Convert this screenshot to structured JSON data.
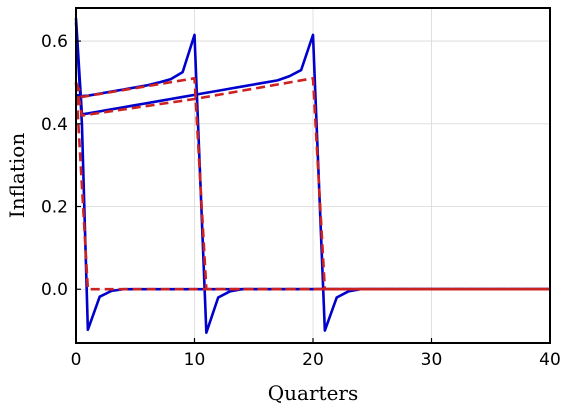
{
  "chart_data": {
    "type": "line",
    "title": "",
    "xlabel": "Quarters",
    "ylabel": "Inflation",
    "xlim": [
      0,
      40
    ],
    "ylim": [
      -0.13,
      0.68
    ],
    "xticks": [
      0,
      10,
      20,
      30,
      40
    ],
    "yticks": [
      0.0,
      0.2,
      0.4,
      0.6
    ],
    "xtick_labels": [
      "0",
      "10",
      "20",
      "30",
      "40"
    ],
    "ytick_labels": [
      "0.0",
      "0.2",
      "0.4",
      "0.6"
    ],
    "grid": true,
    "legend": "none",
    "series": [
      {
        "style": "solid",
        "color": "#0000cc",
        "x": [
          0,
          0.5,
          1,
          2,
          3,
          4,
          5,
          6,
          7,
          8,
          9,
          10,
          11,
          12,
          13,
          14,
          15,
          16,
          17,
          18,
          19,
          20,
          21,
          22,
          23,
          24,
          25,
          26,
          30,
          40
        ],
        "y": [
          0.655,
          0.423,
          0.425,
          0.43,
          0.435,
          0.44,
          0.445,
          0.45,
          0.455,
          0.46,
          0.465,
          0.47,
          0.475,
          0.48,
          0.485,
          0.49,
          0.495,
          0.5,
          0.505,
          0.515,
          0.53,
          0.615,
          -0.1,
          -0.02,
          -0.005,
          0.0,
          0.0,
          0.0,
          0.0,
          0.0
        ]
      },
      {
        "style": "solid",
        "color": "#0000cc",
        "x": [
          0,
          0.5,
          1,
          2,
          3,
          4,
          5,
          6,
          7,
          8,
          9,
          10,
          11,
          12,
          13,
          14,
          15,
          20,
          30,
          40
        ],
        "y": [
          0.47,
          0.467,
          0.468,
          0.473,
          0.478,
          0.483,
          0.488,
          0.493,
          0.5,
          0.508,
          0.525,
          0.615,
          -0.105,
          -0.02,
          -0.005,
          0.0,
          0.0,
          0.0,
          0.0,
          0.0
        ]
      },
      {
        "style": "solid",
        "color": "#0000cc",
        "x": [
          0,
          0.5,
          1,
          2,
          3,
          4,
          5,
          10,
          20,
          30,
          40
        ],
        "y": [
          0.645,
          0.4,
          -0.098,
          -0.018,
          -0.004,
          0.0,
          0.0,
          0.0,
          0.0,
          0.0,
          0.0
        ]
      },
      {
        "style": "dashed",
        "color": "#cc2222",
        "x": [
          0,
          0.5,
          10,
          20,
          21,
          40
        ],
        "y": [
          0.5,
          0.42,
          0.46,
          0.51,
          0.0,
          0.0
        ]
      },
      {
        "style": "dashed",
        "color": "#cc2222",
        "x": [
          0,
          0.5,
          10,
          11,
          40
        ],
        "y": [
          0.5,
          0.465,
          0.51,
          0.0,
          0.0
        ]
      },
      {
        "style": "dashed",
        "color": "#cc2222",
        "x": [
          0,
          1,
          40
        ],
        "y": [
          0.5,
          0.0,
          0.0
        ]
      }
    ]
  }
}
